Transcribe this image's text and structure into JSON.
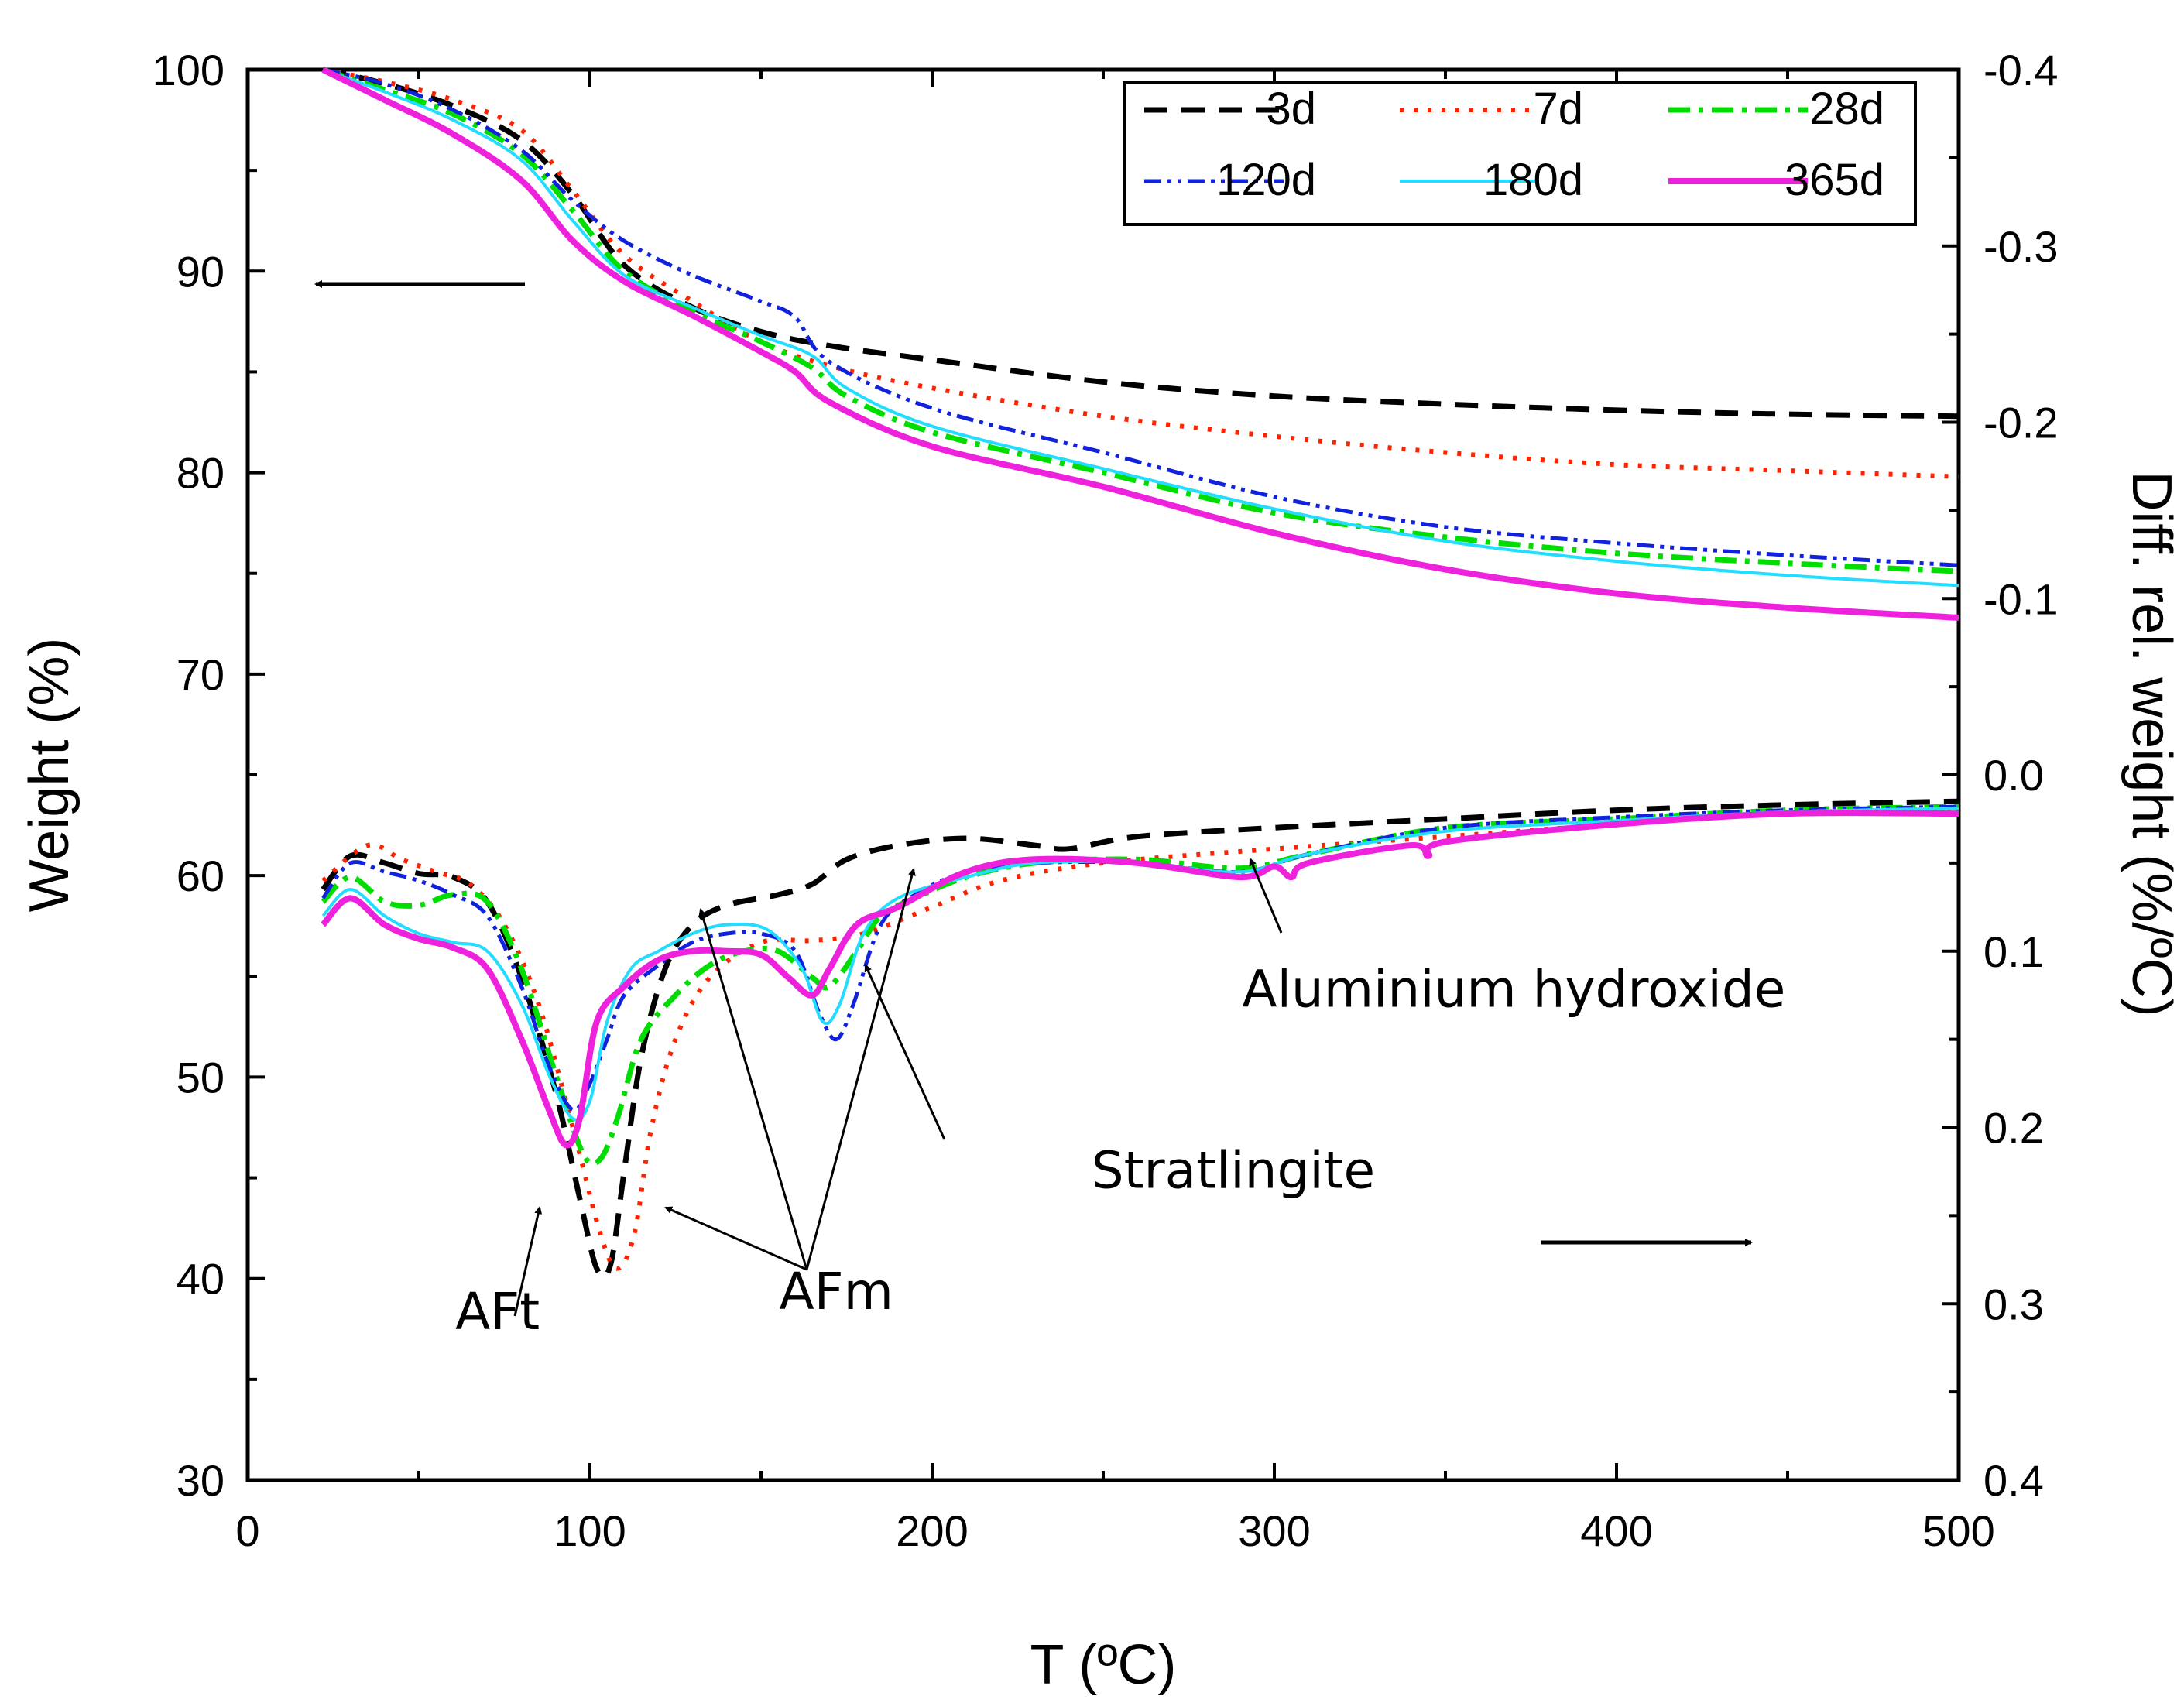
{
  "chart_data": {
    "type": "line",
    "xlabel": "T (ºC)",
    "ylabel_left": "Weight (%)",
    "ylabel_right": "Diff. rel. weight (%/ºC)",
    "xlim": [
      0,
      500
    ],
    "ylim_left": [
      30,
      100
    ],
    "ylim_right": [
      0.4,
      -0.4
    ],
    "x_ticks": [
      "0",
      "100",
      "200",
      "300",
      "400",
      "500"
    ],
    "y_left_ticks": [
      "30",
      "40",
      "50",
      "60",
      "70",
      "80",
      "90",
      "100"
    ],
    "y_right_ticks": [
      "0.4",
      "0.3",
      "0.2",
      "0.1",
      "0.0",
      "-0.1",
      "-0.2",
      "-0.3",
      "-0.4"
    ],
    "grid": false,
    "legend_position": "top-right",
    "series": [
      {
        "name": "3d",
        "color": "#000000",
        "dash": "dash",
        "weight": [
          [
            22,
            100
          ],
          [
            40,
            99.3
          ],
          [
            60,
            98.2
          ],
          [
            80,
            96.5
          ],
          [
            95,
            93.8
          ],
          [
            110,
            90.3
          ],
          [
            130,
            88.2
          ],
          [
            150,
            87.0
          ],
          [
            170,
            86.3
          ],
          [
            200,
            85.6
          ],
          [
            250,
            84.5
          ],
          [
            300,
            83.8
          ],
          [
            350,
            83.4
          ],
          [
            400,
            83.1
          ],
          [
            450,
            82.9
          ],
          [
            500,
            82.8
          ]
        ],
        "dtg": [
          [
            22,
            0.065
          ],
          [
            30,
            0.046
          ],
          [
            40,
            0.05
          ],
          [
            50,
            0.056
          ],
          [
            60,
            0.058
          ],
          [
            70,
            0.072
          ],
          [
            80,
            0.115
          ],
          [
            90,
            0.18
          ],
          [
            97,
            0.24
          ],
          [
            102,
            0.28
          ],
          [
            106,
            0.278
          ],
          [
            110,
            0.225
          ],
          [
            115,
            0.16
          ],
          [
            122,
            0.11
          ],
          [
            130,
            0.085
          ],
          [
            140,
            0.074
          ],
          [
            155,
            0.068
          ],
          [
            165,
            0.062
          ],
          [
            175,
            0.048
          ],
          [
            190,
            0.04
          ],
          [
            210,
            0.036
          ],
          [
            230,
            0.04
          ],
          [
            240,
            0.042
          ],
          [
            260,
            0.035
          ],
          [
            300,
            0.03
          ],
          [
            350,
            0.025
          ],
          [
            400,
            0.02
          ],
          [
            450,
            0.017
          ],
          [
            500,
            0.015
          ]
        ]
      },
      {
        "name": "7d",
        "color": "#ff2200",
        "dash": "dot",
        "weight": [
          [
            22,
            100
          ],
          [
            40,
            99.4
          ],
          [
            60,
            98.5
          ],
          [
            80,
            97.0
          ],
          [
            95,
            94.0
          ],
          [
            110,
            90.8
          ],
          [
            130,
            88.5
          ],
          [
            150,
            86.5
          ],
          [
            170,
            85.3
          ],
          [
            200,
            84.2
          ],
          [
            250,
            82.8
          ],
          [
            300,
            81.8
          ],
          [
            350,
            81.0
          ],
          [
            400,
            80.4
          ],
          [
            450,
            80.1
          ],
          [
            500,
            79.8
          ]
        ],
        "dtg": [
          [
            22,
            0.06
          ],
          [
            35,
            0.04
          ],
          [
            45,
            0.048
          ],
          [
            55,
            0.055
          ],
          [
            65,
            0.062
          ],
          [
            75,
            0.085
          ],
          [
            85,
            0.13
          ],
          [
            95,
            0.2
          ],
          [
            103,
            0.26
          ],
          [
            108,
            0.28
          ],
          [
            113,
            0.26
          ],
          [
            118,
            0.2
          ],
          [
            125,
            0.15
          ],
          [
            135,
            0.115
          ],
          [
            150,
            0.095
          ],
          [
            165,
            0.094
          ],
          [
            180,
            0.09
          ],
          [
            200,
            0.075
          ],
          [
            220,
            0.06
          ],
          [
            250,
            0.05
          ],
          [
            300,
            0.042
          ],
          [
            350,
            0.035
          ],
          [
            400,
            0.028
          ],
          [
            450,
            0.022
          ],
          [
            500,
            0.02
          ]
        ]
      },
      {
        "name": "28d",
        "color": "#00dd00",
        "dash": "dashdot",
        "weight": [
          [
            22,
            100
          ],
          [
            40,
            99.0
          ],
          [
            60,
            97.8
          ],
          [
            80,
            95.8
          ],
          [
            95,
            93.0
          ],
          [
            110,
            90.0
          ],
          [
            130,
            88.0
          ],
          [
            150,
            86.5
          ],
          [
            165,
            85.2
          ],
          [
            175,
            83.8
          ],
          [
            200,
            82.0
          ],
          [
            250,
            80.0
          ],
          [
            300,
            78.0
          ],
          [
            350,
            76.8
          ],
          [
            400,
            76.0
          ],
          [
            450,
            75.5
          ],
          [
            500,
            75.1
          ]
        ],
        "dtg": [
          [
            22,
            0.072
          ],
          [
            30,
            0.058
          ],
          [
            40,
            0.072
          ],
          [
            50,
            0.074
          ],
          [
            60,
            0.068
          ],
          [
            70,
            0.072
          ],
          [
            80,
            0.11
          ],
          [
            90,
            0.17
          ],
          [
            98,
            0.215
          ],
          [
            103,
            0.218
          ],
          [
            108,
            0.195
          ],
          [
            115,
            0.15
          ],
          [
            125,
            0.125
          ],
          [
            135,
            0.108
          ],
          [
            145,
            0.1
          ],
          [
            155,
            0.1
          ],
          [
            165,
            0.115
          ],
          [
            170,
            0.12
          ],
          [
            178,
            0.1
          ],
          [
            185,
            0.08
          ],
          [
            195,
            0.07
          ],
          [
            210,
            0.058
          ],
          [
            230,
            0.05
          ],
          [
            260,
            0.048
          ],
          [
            290,
            0.053
          ],
          [
            310,
            0.045
          ],
          [
            350,
            0.03
          ],
          [
            400,
            0.025
          ],
          [
            450,
            0.02
          ],
          [
            500,
            0.018
          ]
        ]
      },
      {
        "name": "120d",
        "color": "#1122dd",
        "dash": "dashdotdot",
        "weight": [
          [
            22,
            100
          ],
          [
            40,
            99.3
          ],
          [
            60,
            98.0
          ],
          [
            80,
            96.0
          ],
          [
            95,
            93.5
          ],
          [
            110,
            91.5
          ],
          [
            130,
            89.8
          ],
          [
            150,
            88.5
          ],
          [
            160,
            87.7
          ],
          [
            170,
            85.5
          ],
          [
            200,
            83.2
          ],
          [
            250,
            81.0
          ],
          [
            300,
            78.8
          ],
          [
            350,
            77.3
          ],
          [
            400,
            76.5
          ],
          [
            450,
            75.9
          ],
          [
            500,
            75.4
          ]
        ],
        "dtg": [
          [
            22,
            0.07
          ],
          [
            30,
            0.05
          ],
          [
            40,
            0.055
          ],
          [
            50,
            0.06
          ],
          [
            60,
            0.068
          ],
          [
            70,
            0.08
          ],
          [
            80,
            0.12
          ],
          [
            88,
            0.165
          ],
          [
            95,
            0.19
          ],
          [
            100,
            0.175
          ],
          [
            105,
            0.15
          ],
          [
            110,
            0.125
          ],
          [
            120,
            0.108
          ],
          [
            130,
            0.095
          ],
          [
            140,
            0.09
          ],
          [
            150,
            0.09
          ],
          [
            160,
            0.1
          ],
          [
            167,
            0.135
          ],
          [
            172,
            0.15
          ],
          [
            177,
            0.13
          ],
          [
            185,
            0.085
          ],
          [
            195,
            0.068
          ],
          [
            210,
            0.055
          ],
          [
            230,
            0.05
          ],
          [
            260,
            0.05
          ],
          [
            290,
            0.055
          ],
          [
            310,
            0.045
          ],
          [
            350,
            0.03
          ],
          [
            400,
            0.024
          ],
          [
            450,
            0.02
          ],
          [
            500,
            0.018
          ]
        ]
      },
      {
        "name": "180d",
        "color": "#22ddff",
        "dash": "solid",
        "weight": [
          [
            22,
            100
          ],
          [
            40,
            98.9
          ],
          [
            60,
            97.5
          ],
          [
            80,
            95.5
          ],
          [
            95,
            92.5
          ],
          [
            110,
            89.8
          ],
          [
            130,
            88.2
          ],
          [
            150,
            86.8
          ],
          [
            165,
            85.8
          ],
          [
            175,
            84.2
          ],
          [
            200,
            82.3
          ],
          [
            250,
            80.2
          ],
          [
            300,
            78.2
          ],
          [
            350,
            76.6
          ],
          [
            400,
            75.6
          ],
          [
            450,
            74.9
          ],
          [
            500,
            74.4
          ]
        ],
        "dtg": [
          [
            22,
            0.08
          ],
          [
            30,
            0.065
          ],
          [
            40,
            0.08
          ],
          [
            50,
            0.09
          ],
          [
            60,
            0.095
          ],
          [
            70,
            0.1
          ],
          [
            80,
            0.13
          ],
          [
            88,
            0.17
          ],
          [
            95,
            0.195
          ],
          [
            100,
            0.185
          ],
          [
            105,
            0.14
          ],
          [
            112,
            0.11
          ],
          [
            120,
            0.1
          ],
          [
            130,
            0.09
          ],
          [
            140,
            0.085
          ],
          [
            152,
            0.088
          ],
          [
            162,
            0.11
          ],
          [
            168,
            0.14
          ],
          [
            173,
            0.13
          ],
          [
            180,
            0.09
          ],
          [
            190,
            0.07
          ],
          [
            210,
            0.058
          ],
          [
            230,
            0.05
          ],
          [
            260,
            0.05
          ],
          [
            290,
            0.055
          ],
          [
            310,
            0.045
          ],
          [
            350,
            0.032
          ],
          [
            400,
            0.026
          ],
          [
            450,
            0.021
          ],
          [
            500,
            0.019
          ]
        ]
      },
      {
        "name": "365d",
        "color": "#ee22dd",
        "dash": "solid-thick",
        "weight": [
          [
            22,
            100
          ],
          [
            40,
            98.5
          ],
          [
            60,
            96.8
          ],
          [
            80,
            94.5
          ],
          [
            95,
            91.5
          ],
          [
            110,
            89.5
          ],
          [
            130,
            87.8
          ],
          [
            150,
            86.0
          ],
          [
            160,
            85.0
          ],
          [
            170,
            83.5
          ],
          [
            200,
            81.3
          ],
          [
            250,
            79.3
          ],
          [
            300,
            77.0
          ],
          [
            350,
            75.2
          ],
          [
            400,
            74.0
          ],
          [
            450,
            73.3
          ],
          [
            500,
            72.8
          ]
        ],
        "dtg": [
          [
            22,
            0.085
          ],
          [
            30,
            0.07
          ],
          [
            40,
            0.085
          ],
          [
            50,
            0.093
          ],
          [
            60,
            0.098
          ],
          [
            70,
            0.11
          ],
          [
            80,
            0.15
          ],
          [
            88,
            0.19
          ],
          [
            93,
            0.21
          ],
          [
            97,
            0.195
          ],
          [
            102,
            0.14
          ],
          [
            110,
            0.12
          ],
          [
            120,
            0.105
          ],
          [
            130,
            0.1
          ],
          [
            140,
            0.1
          ],
          [
            150,
            0.102
          ],
          [
            158,
            0.115
          ],
          [
            165,
            0.125
          ],
          [
            170,
            0.11
          ],
          [
            178,
            0.085
          ],
          [
            190,
            0.075
          ],
          [
            210,
            0.055
          ],
          [
            230,
            0.048
          ],
          [
            260,
            0.05
          ],
          [
            290,
            0.058
          ],
          [
            300,
            0.052
          ],
          [
            305,
            0.058
          ],
          [
            310,
            0.05
          ],
          [
            340,
            0.04
          ],
          [
            345,
            0.046
          ],
          [
            350,
            0.038
          ],
          [
            400,
            0.028
          ],
          [
            450,
            0.022
          ],
          [
            500,
            0.022
          ]
        ]
      }
    ],
    "annotations": [
      {
        "text": "AFt",
        "x": 73,
        "y_left": 37.5
      },
      {
        "text": "AFm",
        "x": 172,
        "y_left": 38.5
      },
      {
        "text": "Stratlingite",
        "x": 288,
        "y_left": 44.5
      },
      {
        "text": "Aluminium hydroxide",
        "x": 370,
        "y_left": 53.5
      }
    ]
  }
}
